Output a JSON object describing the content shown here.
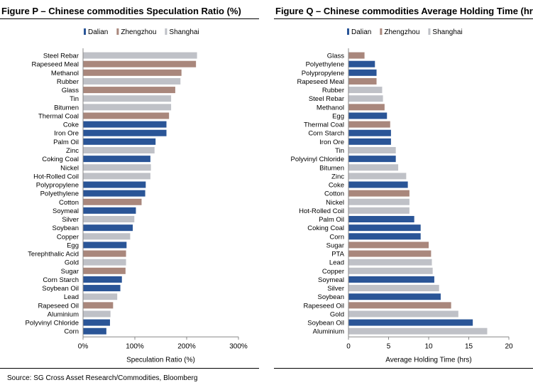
{
  "colors": {
    "dalian": "#2a5597",
    "zhengzhou": "#a9877c",
    "shanghai": "#bfc1c7",
    "axis": "#888888"
  },
  "source": "Source: SG Cross Asset Research/Commodities, Bloomberg",
  "chart_data": [
    {
      "type": "bar",
      "orientation": "horizontal",
      "title": "Figure P – Chinese commodities Speculation Ratio (%)",
      "xlabel": "Speculation Ratio (%)",
      "ylabel": "",
      "xlim": [
        0,
        300
      ],
      "ticks": [
        0,
        100,
        200,
        300
      ],
      "tick_labels": [
        "0%",
        "100%",
        "200%",
        "300%"
      ],
      "legend": [
        "Dalian",
        "Zhengzhou",
        "Shanghai"
      ],
      "legend_position": "top-left",
      "grid": false,
      "categories": [
        "Steel Rebar",
        "Rapeseed Meal",
        "Methanol",
        "Rubber",
        "Glass",
        "Tin",
        "Bitumen",
        "Thermal Coal",
        "Coke",
        "Iron Ore",
        "Palm Oil",
        "Zinc",
        "Coking Coal",
        "Nickel",
        "Hot-Rolled Coil",
        "Polypropylene",
        "Polyethylene",
        "Cotton",
        "Soymeal",
        "Silver",
        "Soybean",
        "Copper",
        "Egg",
        "Terephthalic Acid",
        "Gold",
        "Sugar",
        "Corn Starch",
        "Soybean Oil",
        "Lead",
        "Rapeseed Oil",
        "Aluminium",
        "Polyvinyl Chloride",
        "Corn"
      ],
      "values": [
        220,
        218,
        190,
        188,
        178,
        170,
        170,
        166,
        161,
        161,
        140,
        138,
        130,
        131,
        130,
        121,
        120,
        113,
        102,
        99,
        96,
        91,
        84,
        83,
        83,
        82,
        75,
        72,
        66,
        58,
        53,
        52,
        45
      ],
      "exchange": [
        "Shanghai",
        "Zhengzhou",
        "Zhengzhou",
        "Shanghai",
        "Zhengzhou",
        "Shanghai",
        "Shanghai",
        "Zhengzhou",
        "Dalian",
        "Dalian",
        "Dalian",
        "Shanghai",
        "Dalian",
        "Shanghai",
        "Shanghai",
        "Dalian",
        "Dalian",
        "Zhengzhou",
        "Dalian",
        "Shanghai",
        "Dalian",
        "Shanghai",
        "Dalian",
        "Zhengzhou",
        "Shanghai",
        "Zhengzhou",
        "Dalian",
        "Dalian",
        "Shanghai",
        "Zhengzhou",
        "Shanghai",
        "Dalian",
        "Dalian"
      ]
    },
    {
      "type": "bar",
      "orientation": "horizontal",
      "title": "Figure Q – Chinese commodities Average Holding Time (hrs)",
      "xlabel": "Average Holding Time (hrs)",
      "ylabel": "",
      "xlim": [
        0,
        20
      ],
      "ticks": [
        0,
        5,
        10,
        15,
        20
      ],
      "tick_labels": [
        "0",
        "5",
        "10",
        "15",
        "20"
      ],
      "legend": [
        "Dalian",
        "Zhengzhou",
        "Shanghai"
      ],
      "legend_position": "top-left",
      "grid": false,
      "categories": [
        "Glass",
        "Polyethylene",
        "Polypropylene",
        "Rapeseed Meal",
        "Rubber",
        "Steel Rebar",
        "Methanol",
        "Egg",
        "Thermal Coal",
        "Corn Starch",
        "Iron Ore",
        "Tin",
        "Polyvinyl Chloride",
        "Bitumen",
        "Zinc",
        "Coke",
        "Cotton",
        "Nickel",
        "Hot-Rolled Coil",
        "Palm Oil",
        "Coking Coal",
        "Corn",
        "Sugar",
        "PTA",
        "Lead",
        "Copper",
        "Soymeal",
        "Silver",
        "Soybean",
        "Rapeseed Oil",
        "Gold",
        "Soybean Oil",
        "Aluminium"
      ],
      "values": [
        2.0,
        3.3,
        3.5,
        3.5,
        4.2,
        4.3,
        4.5,
        4.8,
        5.2,
        5.3,
        5.3,
        5.9,
        5.9,
        6.2,
        7.2,
        7.4,
        7.6,
        7.6,
        7.6,
        8.2,
        9.0,
        9.0,
        10.0,
        10.3,
        10.4,
        10.5,
        10.7,
        11.3,
        11.5,
        12.8,
        13.7,
        15.5,
        17.3
      ],
      "exchange": [
        "Zhengzhou",
        "Dalian",
        "Dalian",
        "Zhengzhou",
        "Shanghai",
        "Shanghai",
        "Zhengzhou",
        "Dalian",
        "Zhengzhou",
        "Dalian",
        "Dalian",
        "Shanghai",
        "Dalian",
        "Shanghai",
        "Shanghai",
        "Dalian",
        "Zhengzhou",
        "Shanghai",
        "Shanghai",
        "Dalian",
        "Dalian",
        "Dalian",
        "Zhengzhou",
        "Zhengzhou",
        "Shanghai",
        "Shanghai",
        "Dalian",
        "Shanghai",
        "Dalian",
        "Zhengzhou",
        "Shanghai",
        "Dalian",
        "Shanghai"
      ]
    }
  ]
}
